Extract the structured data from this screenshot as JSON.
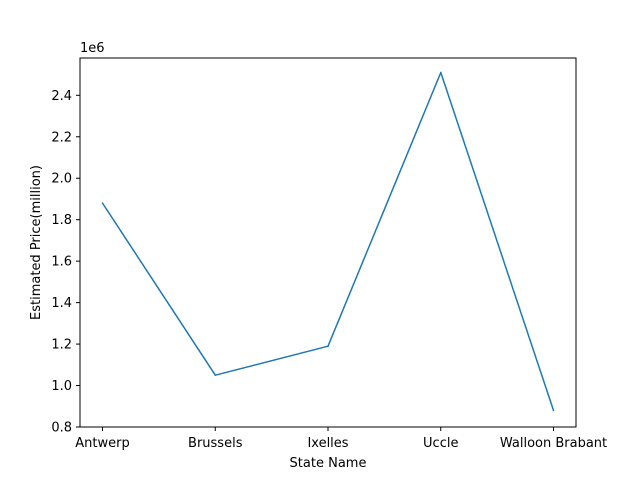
{
  "chart_data": {
    "type": "line",
    "categories": [
      "Antwerp",
      "Brussels",
      "Ixelles",
      "Uccle",
      "Walloon Brabant"
    ],
    "series": [
      {
        "values": [
          1880000,
          1050000,
          1190000,
          2510000,
          880000
        ],
        "color": "#1f77b4"
      }
    ],
    "xlabel": "State Name",
    "ylabel": "Estimated Price(million)",
    "offset_text": "1e6",
    "ylim": [
      800000,
      2580000
    ],
    "yticks": [
      800000,
      1000000,
      1200000,
      1400000,
      1600000,
      1800000,
      2000000,
      2200000,
      2400000
    ],
    "ytick_labels": [
      "0.8",
      "1.0",
      "1.2",
      "1.4",
      "1.6",
      "1.8",
      "2.0",
      "2.2",
      "2.4"
    ],
    "grid": false,
    "legend": "none"
  }
}
